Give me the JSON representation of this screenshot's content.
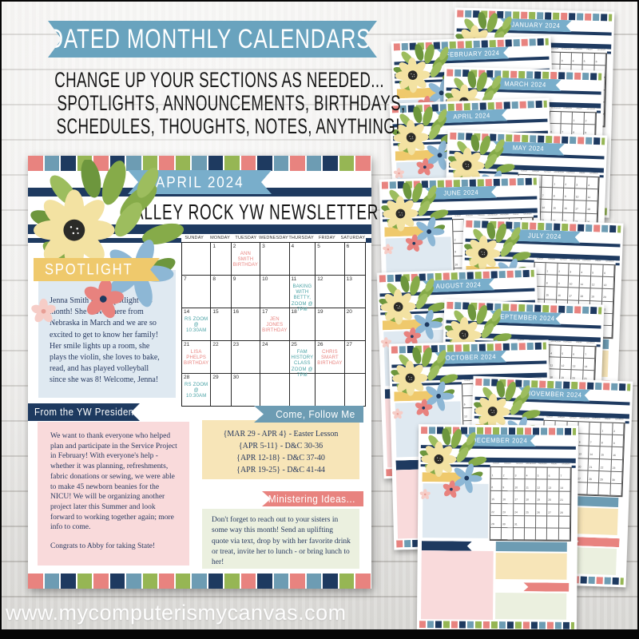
{
  "hero": {
    "banner": "DATED MONTHLY CALENDARS!",
    "description_lines": [
      "CHANGE UP YOUR SECTIONS AS NEEDED...",
      "SPOTLIGHTS, ANNOUNCEMENTS, BIRTHDAYS,",
      "SCHEDULES, THOUGHTS, NOTES, ANYTHING!"
    ]
  },
  "newsletter": {
    "month_label": "APRIL 2024",
    "title": "VALLEY ROCK YW NEWSLETTER",
    "spotlight": {
      "label": "SPOTLIGHT",
      "text": "Jenna Smith is our spotlight this month! She moved here from Nebraska in March and we are so excited to get to know her family! Her smile lights up a room, she plays the violin, she loves to bake, read, and has played volleyball since she was 8! Welcome, Jenna!"
    },
    "calendar": {
      "day_names": [
        "SUNDAY",
        "MONDAY",
        "TUESDAY",
        "WEDNESDAY",
        "THURSDAY",
        "FRIDAY",
        "SATURDAY"
      ],
      "weeks": [
        [
          null,
          1,
          2,
          3,
          4,
          5,
          6
        ],
        [
          7,
          8,
          9,
          10,
          11,
          12,
          13
        ],
        [
          14,
          15,
          16,
          17,
          18,
          19,
          20
        ],
        [
          21,
          22,
          23,
          24,
          25,
          26,
          27
        ],
        [
          28,
          29,
          30,
          null,
          null,
          null,
          null
        ]
      ],
      "events": {
        "2": {
          "text": "ANN SMITH BIRTHDAY",
          "type": "coral"
        },
        "11": {
          "text": "BAKING WITH BETTY, ZOOM @ 7PM",
          "type": "teal"
        },
        "14": {
          "text": "RS ZOOM @ 10:30am",
          "type": "teal"
        },
        "17": {
          "text": "JEN JONES BIRTHDAY",
          "type": "coral"
        },
        "21": {
          "text": "LISA PHELPS BIRTHDAY",
          "type": "coral"
        },
        "25": {
          "text": "FAM HISTORY CLASS ZOOM @ 7PM",
          "type": "teal"
        },
        "26": {
          "text": "CHRIS SMART BIRTHDAY",
          "type": "coral"
        },
        "28": {
          "text": "RS ZOOM @ 10:30am",
          "type": "teal"
        }
      }
    },
    "presidency": {
      "label": "From the YW Presidency:",
      "paragraphs": [
        "We want to thank everyone who helped plan and participate in the Service Project in February! With everyone's help - whether it was planning, refreshments, fabric donations or sewing, we were able to make 45 newborn beanies for the NICU! We will be organizing another project later this Summer and look forward to working together again; more info to come.",
        "Congrats to Abby for taking State!"
      ]
    },
    "come_follow_me": {
      "label": "Come, Follow Me",
      "lines": [
        "{MAR 29 - APR 4} - Easter Lesson",
        "{APR 5-11} - D&C 30-36",
        "{APR 12-18} - D&C 37-40",
        "{APR 19-25} - D&C 41-44"
      ]
    },
    "ministering": {
      "label": "Ministering Ideas...",
      "text": "Don't forget to reach out to your sisters in some way this month! Send an uplifting quote via text, drop by with her favorite drink or treat, invite her to lunch - or bring lunch to her!"
    }
  },
  "calendar_stack": {
    "year": 2024,
    "months": [
      "JANUARY 2024",
      "FEBRUARY 2024",
      "MARCH 2024",
      "APRIL 2024",
      "MAY 2024",
      "JUNE 2024",
      "JULY 2024",
      "AUGUST 2024",
      "SEPTEMBER 2024",
      "OCTOBER 2024",
      "NOVEMBER 2024",
      "DECEMBER 2024"
    ]
  },
  "watermark": "www.mycomputerismycanvas.com",
  "colors": {
    "hero_teal": "#69a3be",
    "ribbon_blue": "#79aecb",
    "navy": "#1e3a60",
    "coral": "#e8837f",
    "green": "#96b654",
    "steel_blue": "#6d9cb3",
    "banner_yellow": "#efc96c",
    "box_blue": "#dfe9f1",
    "box_pink": "#f9dadb",
    "box_yellow": "#f7e5b8",
    "box_green": "#ebf0df",
    "event_teal": "#47a1a4",
    "event_coral": "#e8837f",
    "body_text": "#27395f"
  }
}
